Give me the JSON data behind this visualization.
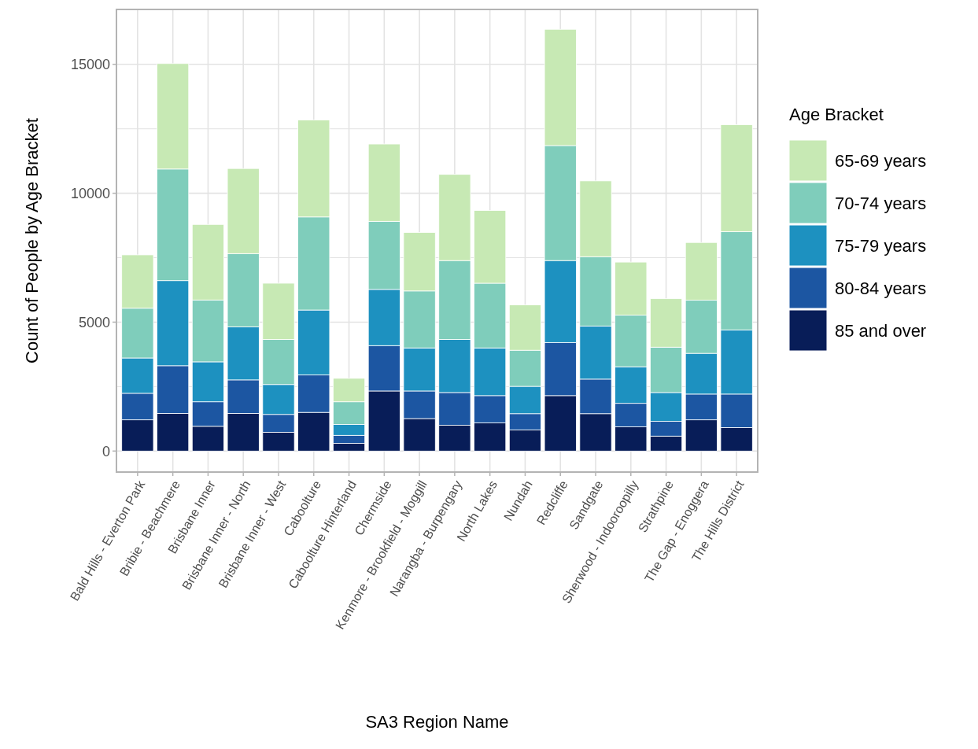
{
  "chart_data": {
    "type": "bar",
    "stacked": true,
    "xlabel": "SA3 Region Name",
    "ylabel": "Count of People by Age Bracket",
    "legend_title": "Age Bracket",
    "legend": "right",
    "grid": true,
    "categories": [
      "Bald Hills - Everton Park",
      "Bribie - Beachmere",
      "Brisbane Inner",
      "Brisbane Inner - North",
      "Brisbane Inner - West",
      "Caboolture",
      "Caboolture Hinterland",
      "Chermside",
      "Kenmore - Brookfield - Moggill",
      "Narangba - Burpengary",
      "North Lakes",
      "Nundah",
      "Redcliffe",
      "Sandgate",
      "Sherwood - Indooroopilly",
      "Strathpine",
      "The Gap - Enoggera",
      "The Hills District"
    ],
    "ylim": [
      -815,
      17130
    ],
    "yticks": [
      0,
      {
        "value": 2500,
        "label": null
      },
      5000,
      {
        "value": 7500,
        "label": null
      },
      10000,
      {
        "value": 12500,
        "label": null
      },
      15000
    ],
    "series": [
      {
        "name": "85 and over",
        "color": "#081d58",
        "values": [
          1210,
          1460,
          960,
          1460,
          730,
          1500,
          300,
          2330,
          1260,
          1000,
          1090,
          820,
          2150,
          1450,
          940,
          580,
          1210,
          910
        ]
      },
      {
        "name": "80-84 years",
        "color": "#1c56a2",
        "values": [
          1030,
          1850,
          950,
          1300,
          690,
          1450,
          310,
          1760,
          1070,
          1270,
          1060,
          630,
          2060,
          1340,
          910,
          570,
          1000,
          1300
        ]
      },
      {
        "name": "75-79 years",
        "color": "#1d91c0",
        "values": [
          1370,
          3300,
          1550,
          2060,
          1160,
          2520,
          420,
          2180,
          1670,
          2060,
          1850,
          1060,
          3180,
          2060,
          1420,
          1120,
          1580,
          2490
        ]
      },
      {
        "name": "70-74 years",
        "color": "#7fcdbb",
        "values": [
          1930,
          4330,
          2400,
          2840,
          1750,
          3610,
          880,
          2640,
          2210,
          3060,
          2510,
          1400,
          4460,
          2690,
          2000,
          1760,
          2060,
          3810
        ]
      },
      {
        "name": "65-69 years",
        "color": "#c7e9b4",
        "values": [
          2070,
          4090,
          2930,
          3300,
          2180,
          3760,
          910,
          3000,
          2270,
          3340,
          2820,
          1760,
          4510,
          2940,
          2060,
          1880,
          2240,
          4150
        ]
      }
    ]
  }
}
